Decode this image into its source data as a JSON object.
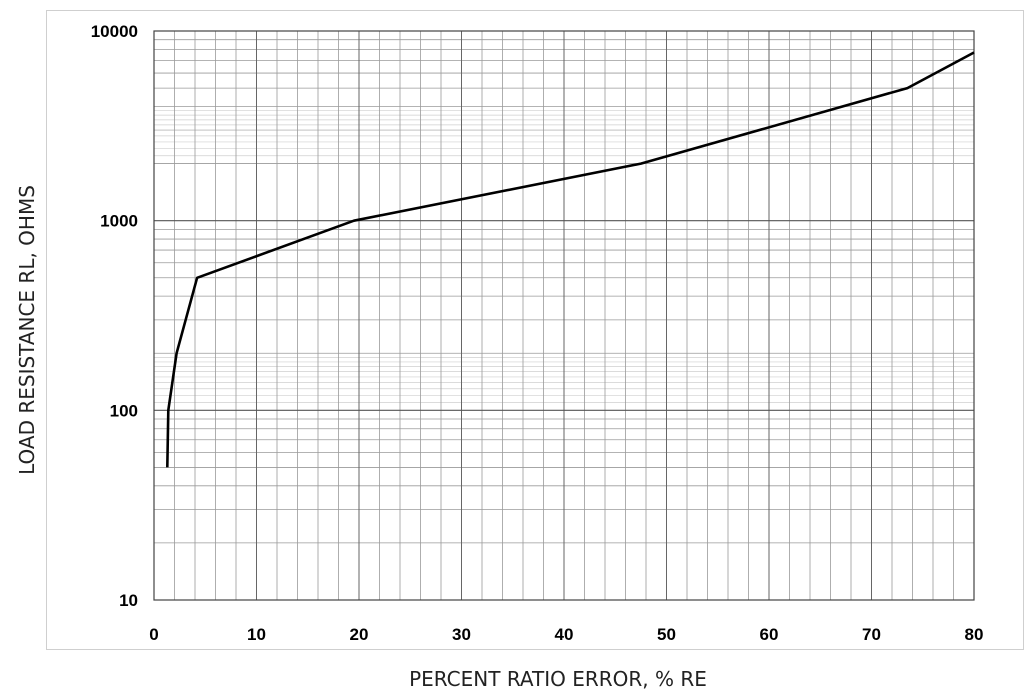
{
  "chart_data": {
    "type": "line",
    "xlabel": "PERCENT RATIO ERROR, % RE",
    "ylabel": "LOAD RESISTANCE RL, OHMS",
    "x_scale": "linear",
    "y_scale": "log",
    "xlim": [
      0,
      80
    ],
    "ylim": [
      10,
      10000
    ],
    "x_ticks": [
      "0",
      "10",
      "20",
      "30",
      "40",
      "50",
      "60",
      "70",
      "80"
    ],
    "y_ticks": [
      "10",
      "100",
      "1000",
      "10000"
    ],
    "grid": true,
    "series": [
      {
        "color": "#000000",
        "points": [
          {
            "x": 1.3,
            "y": 50
          },
          {
            "x": 1.4,
            "y": 100
          },
          {
            "x": 2.2,
            "y": 200
          },
          {
            "x": 4.2,
            "y": 500
          },
          {
            "x": 19.5,
            "y": 1000
          },
          {
            "x": 47.5,
            "y": 2000
          },
          {
            "x": 73.5,
            "y": 5000
          },
          {
            "x": 80,
            "y": 7700
          }
        ]
      }
    ]
  }
}
